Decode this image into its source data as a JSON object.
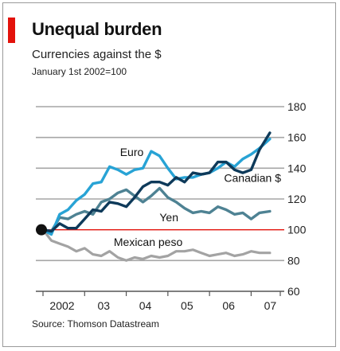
{
  "header": {
    "title": "Unequal burden",
    "subtitle": "Currencies against the $",
    "note": "January 1st 2002=100"
  },
  "footer": {
    "source": "Source: Thomson Datastream"
  },
  "colors": {
    "accent": "#e3120b",
    "euro": "#28a3d5",
    "canadian": "#0e3a5a",
    "yen": "#4e8293",
    "peso": "#a3a3a3",
    "baseline": "#e3120b",
    "grid": "#a6a6a6",
    "marker": "#111111"
  },
  "chart_data": {
    "type": "line",
    "title": "Unequal burden",
    "subtitle": "Currencies against the $",
    "note": "January 1st 2002=100",
    "ylim": [
      60,
      180
    ],
    "yticks": [
      60,
      80,
      100,
      120,
      140,
      160,
      180
    ],
    "y_axis_side": "right",
    "grid": true,
    "reference_line": 100,
    "xlim": [
      2002.0,
      2007.7
    ],
    "xticks": [
      {
        "value": 2002.0,
        "label": "2002"
      },
      {
        "value": 2003.0,
        "label": "03"
      },
      {
        "value": 2004.0,
        "label": "04"
      },
      {
        "value": 2005.0,
        "label": "05"
      },
      {
        "value": 2006.0,
        "label": "06"
      },
      {
        "value": 2007.0,
        "label": "07"
      }
    ],
    "start_marker": {
      "x": 2002.0,
      "y": 100
    },
    "series": [
      {
        "name": "Euro",
        "color_key": "euro",
        "label_position": "above",
        "x": [
          2002.0,
          2002.2,
          2002.4,
          2002.6,
          2002.8,
          2003.0,
          2003.2,
          2003.4,
          2003.6,
          2003.8,
          2004.0,
          2004.2,
          2004.4,
          2004.6,
          2004.8,
          2005.0,
          2005.2,
          2005.4,
          2005.6,
          2005.8,
          2006.0,
          2006.2,
          2006.4,
          2006.6,
          2006.8,
          2007.0,
          2007.2,
          2007.45
        ],
        "y": [
          100,
          97,
          110,
          113,
          119,
          123,
          130,
          131,
          141,
          139,
          136,
          139,
          140,
          151,
          148,
          140,
          133,
          134,
          134,
          136,
          137,
          140,
          144,
          141,
          146,
          149,
          153,
          159
        ]
      },
      {
        "name": "Canadian $",
        "color_key": "canadian",
        "label_position": "right",
        "x": [
          2002.0,
          2002.2,
          2002.4,
          2002.6,
          2002.8,
          2003.0,
          2003.2,
          2003.4,
          2003.6,
          2003.8,
          2004.0,
          2004.2,
          2004.4,
          2004.6,
          2004.8,
          2005.0,
          2005.2,
          2005.4,
          2005.6,
          2005.8,
          2006.0,
          2006.2,
          2006.4,
          2006.6,
          2006.8,
          2007.0,
          2007.2,
          2007.45
        ],
        "y": [
          100,
          99,
          104,
          101,
          101,
          107,
          113,
          112,
          118,
          117,
          115,
          121,
          128,
          131,
          131,
          129,
          134,
          131,
          137,
          136,
          137,
          144,
          144,
          139,
          137,
          139,
          152,
          163
        ]
      },
      {
        "name": "Yen",
        "color_key": "yen",
        "label_position": "below",
        "x": [
          2002.0,
          2002.2,
          2002.4,
          2002.6,
          2002.8,
          2003.0,
          2003.2,
          2003.4,
          2003.6,
          2003.8,
          2004.0,
          2004.2,
          2004.4,
          2004.6,
          2004.8,
          2005.0,
          2005.2,
          2005.4,
          2005.6,
          2005.8,
          2006.0,
          2006.2,
          2006.4,
          2006.6,
          2006.8,
          2007.0,
          2007.2,
          2007.45
        ],
        "y": [
          100,
          99,
          108,
          107,
          110,
          112,
          110,
          118,
          120,
          124,
          126,
          122,
          118,
          122,
          127,
          121,
          118,
          114,
          111,
          112,
          111,
          115,
          113,
          110,
          111,
          107,
          111,
          112
        ]
      },
      {
        "name": "Mexican peso",
        "color_key": "peso",
        "label_position": "above",
        "x": [
          2002.0,
          2002.2,
          2002.4,
          2002.6,
          2002.8,
          2003.0,
          2003.2,
          2003.4,
          2003.6,
          2003.8,
          2004.0,
          2004.2,
          2004.4,
          2004.6,
          2004.8,
          2005.0,
          2005.2,
          2005.4,
          2005.6,
          2005.8,
          2006.0,
          2006.2,
          2006.4,
          2006.6,
          2006.8,
          2007.0,
          2007.2,
          2007.45
        ],
        "y": [
          100,
          93,
          91,
          89,
          86,
          88,
          84,
          83,
          86,
          82,
          80,
          82,
          81,
          83,
          82,
          83,
          86,
          86,
          87,
          85,
          83,
          84,
          85,
          83,
          84,
          86,
          85,
          85
        ]
      }
    ]
  }
}
